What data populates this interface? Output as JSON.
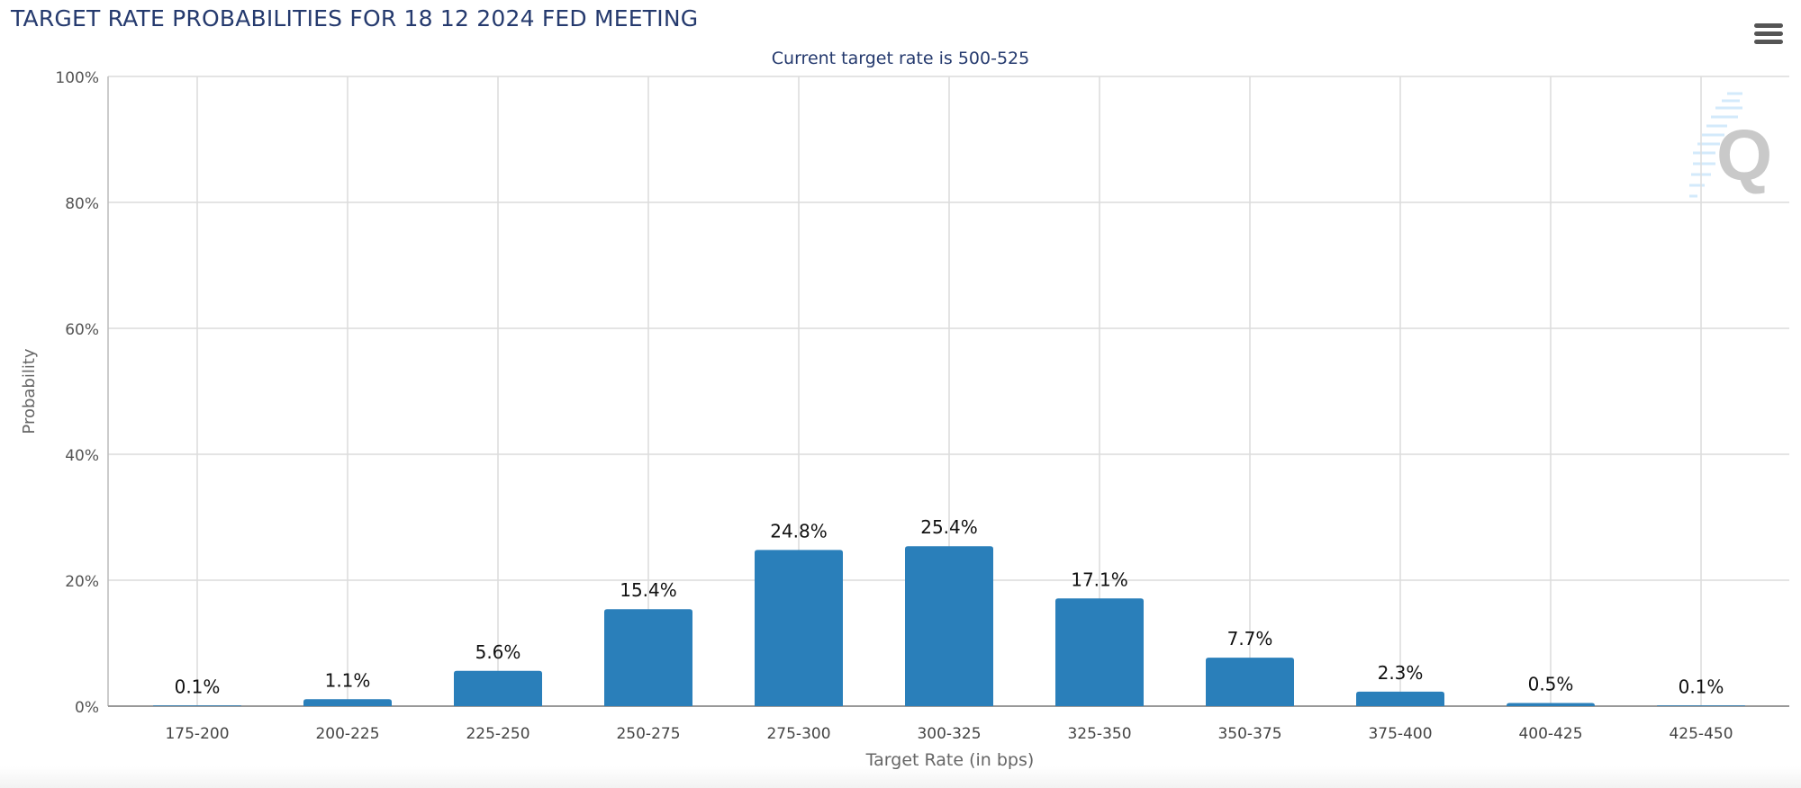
{
  "header": {
    "title": "TARGET RATE PROBABILITIES FOR 18 12 2024 FED MEETING",
    "menu_icon": "hamburger-menu-icon"
  },
  "chart_data": {
    "type": "bar",
    "title": "TARGET RATE PROBABILITIES FOR 18 12 2024 FED MEETING",
    "subtitle": "Current target rate is 500-525",
    "categories": [
      "175-200",
      "200-225",
      "225-250",
      "250-275",
      "275-300",
      "300-325",
      "325-350",
      "350-375",
      "375-400",
      "400-425",
      "425-450"
    ],
    "values": [
      0.1,
      1.1,
      5.6,
      15.4,
      24.8,
      25.4,
      17.1,
      7.7,
      2.3,
      0.5,
      0.1
    ],
    "data_labels": [
      "0.1%",
      "1.1%",
      "5.6%",
      "15.4%",
      "24.8%",
      "25.4%",
      "17.1%",
      "7.7%",
      "2.3%",
      "0.5%",
      "0.1%"
    ],
    "xlabel": "Target Rate (in bps)",
    "ylabel": "Probability",
    "ylim": [
      0,
      100
    ],
    "yticks": [
      0,
      20,
      40,
      60,
      80,
      100
    ],
    "ytick_labels": [
      "0%",
      "20%",
      "40%",
      "60%",
      "80%",
      "100%"
    ],
    "grid": true,
    "bar_color": "#2a7fba"
  }
}
